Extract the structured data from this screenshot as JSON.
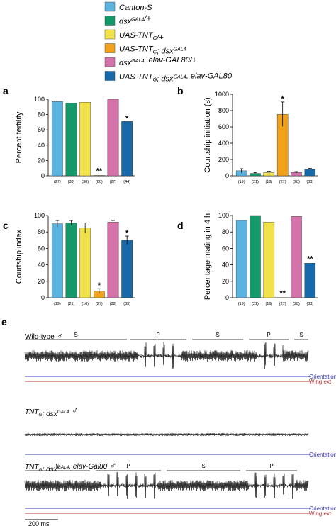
{
  "legend": [
    {
      "label": "Canton-S",
      "color": "#5bb4e0"
    },
    {
      "label": "dsx GAL4/+",
      "color": "#13996a"
    },
    {
      "label": "UAS-TNT G/+",
      "color": "#f1e24b"
    },
    {
      "label": "UAS-TNT G; dsx GAL4",
      "color": "#f0a21c"
    },
    {
      "label": "dsx GAL4, elav-GAL80/+",
      "color": "#d472aa"
    },
    {
      "label": "UAS-TNT G; dsx GAL4, elav-GAL80",
      "color": "#1869a9"
    }
  ],
  "legend_parts": [
    [
      {
        "t": "Canton-S"
      }
    ],
    [
      {
        "t": "dsx"
      },
      {
        "t": "GAL4",
        "sup": true
      },
      {
        "t": "/+"
      }
    ],
    [
      {
        "t": "UAS-TNT"
      },
      {
        "t": "G",
        "sub": true
      },
      {
        "t": "/+"
      }
    ],
    [
      {
        "t": "UAS-TNT"
      },
      {
        "t": "G",
        "sub": true
      },
      {
        "t": "; dsx"
      },
      {
        "t": "GAL4",
        "sup": true
      }
    ],
    [
      {
        "t": "dsx"
      },
      {
        "t": "GAL4",
        "sup": true
      },
      {
        "t": ", elav-GAL80/+"
      }
    ],
    [
      {
        "t": "UAS-TNT"
      },
      {
        "t": "G",
        "sub": true
      },
      {
        "t": "; dsx"
      },
      {
        "t": "GAL4",
        "sup": true
      },
      {
        "t": ", elav-GAL80"
      }
    ]
  ],
  "chart_data": [
    {
      "panel": "a",
      "type": "bar",
      "ylabel": "Percent fertility",
      "ylim": [
        0,
        100
      ],
      "yticks": [
        0,
        20,
        40,
        60,
        80,
        100
      ],
      "values": [
        97,
        95,
        96,
        0.5,
        100,
        71
      ],
      "errors": [
        0,
        0,
        0,
        0,
        0,
        0
      ],
      "n": [
        "(27)",
        "(38)",
        "(36)",
        "(80)",
        "(27)",
        "(44)"
      ],
      "marks": [
        "",
        "",
        "",
        "**",
        "",
        "*"
      ]
    },
    {
      "panel": "b",
      "type": "bar",
      "ylabel": "Courtship initiation (s)",
      "ylim": [
        0,
        1000
      ],
      "yticks": [
        0,
        200,
        400,
        600,
        800,
        1000
      ],
      "values": [
        62,
        30,
        40,
        755,
        42,
        80
      ],
      "errors": [
        25,
        12,
        15,
        150,
        10,
        12
      ],
      "n": [
        "(19)",
        "(21)",
        "(16)",
        "(27)",
        "(28)",
        "(33)"
      ],
      "marks": [
        "",
        "",
        "",
        "*",
        "",
        ""
      ]
    },
    {
      "panel": "c",
      "type": "bar",
      "ylabel": "Courtship index",
      "ylim": [
        0,
        100
      ],
      "yticks": [
        0,
        20,
        40,
        60,
        80,
        100
      ],
      "values": [
        90,
        91,
        85,
        8,
        92,
        70
      ],
      "errors": [
        4,
        3,
        6,
        3,
        2,
        5
      ],
      "n": [
        "(19)",
        "(21)",
        "(16)",
        "(27)",
        "(28)",
        "(33)"
      ],
      "marks": [
        "",
        "",
        "",
        "*",
        "",
        "*"
      ]
    },
    {
      "panel": "d",
      "type": "bar",
      "ylabel": "Percentage mating in 4 h",
      "ylim": [
        0,
        100
      ],
      "yticks": [
        0,
        20,
        40,
        60,
        80,
        100
      ],
      "values": [
        94,
        100,
        92,
        0,
        99,
        42
      ],
      "errors": [
        0,
        0,
        0,
        0,
        0,
        0
      ],
      "n": [
        "(19)",
        "(21)",
        "(16)",
        "(27)",
        "(28)",
        "(33)"
      ],
      "marks": [
        "",
        "",
        "",
        "**",
        "",
        "**"
      ]
    }
  ],
  "panel_e": {
    "label": "e",
    "tracks": [
      {
        "name_parts": [
          {
            "t": "Wild-type"
          }
        ],
        "male": "♂",
        "segments": [
          {
            "t": "S",
            "a": 0.0,
            "b": 0.36
          },
          {
            "t": "P",
            "a": 0.37,
            "b": 0.57
          },
          {
            "t": "S",
            "a": 0.59,
            "b": 0.77
          },
          {
            "t": "P",
            "a": 0.79,
            "b": 0.93
          },
          {
            "t": "S",
            "a": 0.95,
            "b": 1.0
          }
        ],
        "bursts": [
          [
            0.4,
            0.55
          ],
          [
            0.82,
            0.91
          ]
        ],
        "orientation": "Orientation",
        "wing": "Wing ext.",
        "show_wing": true
      },
      {
        "name_parts": [
          {
            "t": "TNT"
          },
          {
            "t": "G",
            "sub": true
          },
          {
            "t": "; dsx"
          },
          {
            "t": "GAL4",
            "sup": true
          }
        ],
        "male": "♂",
        "segments": [],
        "bursts": [],
        "orientation": "Orientation",
        "wing": "",
        "show_wing": false
      },
      {
        "name_parts": [
          {
            "t": "TNT"
          },
          {
            "t": "G",
            "sub": true
          },
          {
            "t": "; dsx"
          },
          {
            "t": "GAL4",
            "sup": true
          },
          {
            "t": ", elav-Gal80"
          }
        ],
        "male": "♂",
        "segments": [
          {
            "t": "S",
            "a": 0.0,
            "b": 0.23
          },
          {
            "t": "P",
            "a": 0.25,
            "b": 0.48
          },
          {
            "t": "S",
            "a": 0.5,
            "b": 0.76
          },
          {
            "t": "P",
            "a": 0.78,
            "b": 0.96
          }
        ],
        "bursts": [
          [
            0.27,
            0.47
          ],
          [
            0.79,
            0.95
          ]
        ],
        "orientation": "Orientation",
        "wing": "Wing ext.",
        "show_wing": true
      }
    ],
    "scalebar": "200 ms"
  }
}
